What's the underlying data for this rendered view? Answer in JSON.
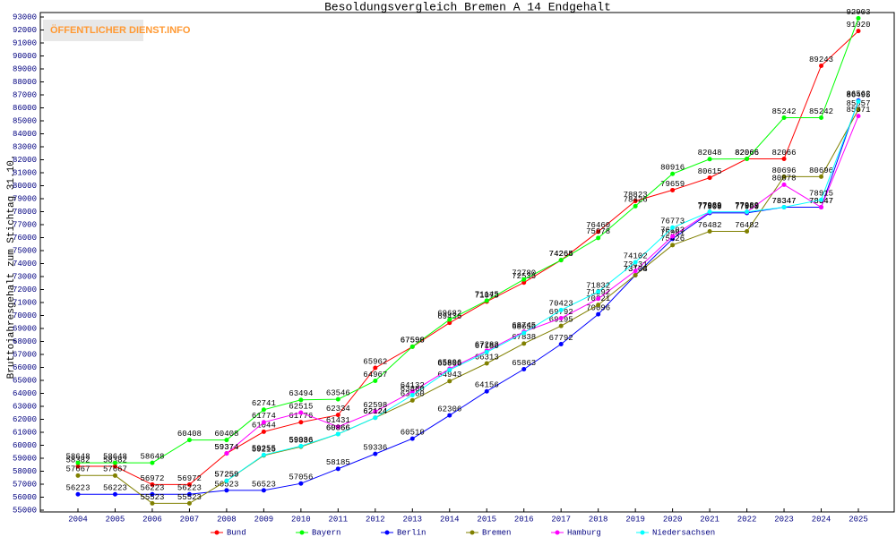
{
  "logo": "ÖFFENTLICHER DIENST.INFO",
  "chart_data": {
    "type": "line",
    "title": "Besoldungsvergleich Bremen A 14 Endgehalt",
    "y_label": "Bruttojahresgehalt zum Stichtag 31.10.",
    "categories": [
      "2004",
      "2005",
      "2006",
      "2007",
      "2008",
      "2009",
      "2010",
      "2011",
      "2012",
      "2013",
      "2014",
      "2015",
      "2016",
      "2017",
      "2018",
      "2019",
      "2020",
      "2021",
      "2022",
      "2023",
      "2024",
      "2025"
    ],
    "ylim": [
      55000,
      93000
    ],
    "yticks": [
      55000,
      56000,
      57000,
      58000,
      59000,
      60000,
      61000,
      62000,
      63000,
      64000,
      65000,
      66000,
      67000,
      68000,
      69000,
      70000,
      71000,
      72000,
      73000,
      74000,
      75000,
      76000,
      77000,
      78000,
      79000,
      80000,
      81000,
      82000,
      83000,
      84000,
      85000,
      86000,
      87000,
      88000,
      89000,
      90000,
      91000,
      92000,
      93000
    ],
    "grid": false,
    "legend": "bottom",
    "series": [
      {
        "name": "Bund",
        "color": "#ff0000",
        "values": [
          58382,
          58382,
          56972,
          56972,
          59374,
          61044,
          61776,
          62334,
          65962,
          67596,
          69436,
          71073,
          72536,
          74264,
          76460,
          78823,
          79659,
          80615,
          82066,
          82066,
          89243,
          91920
        ]
      },
      {
        "name": "Bayern",
        "color": "#00ff00",
        "values": [
          58648,
          58648,
          58648,
          60408,
          60408,
          62741,
          63494,
          63546,
          64967,
          67598,
          69682,
          71145,
          72780,
          74265,
          75978,
          78426,
          80916,
          82048,
          82066,
          85242,
          85242,
          92903
        ]
      },
      {
        "name": "Berlin",
        "color": "#0000ff",
        "values": [
          56223,
          56223,
          56223,
          56223,
          56523,
          56523,
          57056,
          58185,
          59336,
          60510,
          62306,
          64156,
          65863,
          67792,
          70096,
          73104,
          75901,
          77900,
          77900,
          78347,
          78347,
          86562
        ]
      },
      {
        "name": "Bremen",
        "color": "#808000",
        "values": [
          57667,
          57667,
          55523,
          55523,
          57259,
          59215,
          59886,
          60866,
          62124,
          63460,
          64943,
          66313,
          67838,
          69195,
          70821,
          73108,
          75426,
          76482,
          76482,
          80696,
          80696,
          85857
        ]
      },
      {
        "name": "Hamburg",
        "color": "#ff00ff",
        "values": [
          null,
          null,
          null,
          null,
          59374,
          61774,
          62515,
          61431,
          62598,
          64132,
          65896,
          67283,
          68745,
          69792,
          71292,
          73431,
          76103,
          77969,
          77969,
          80078,
          78347,
          85371
        ]
      },
      {
        "name": "Niedersachsen",
        "color": "#00ffff",
        "values": [
          null,
          null,
          null,
          null,
          57259,
          59255,
          59936,
          60866,
          62124,
          63860,
          65806,
          67180,
          68656,
          70423,
          71832,
          74102,
          76773,
          77989,
          77989,
          78347,
          78915,
          86495
        ]
      }
    ]
  }
}
